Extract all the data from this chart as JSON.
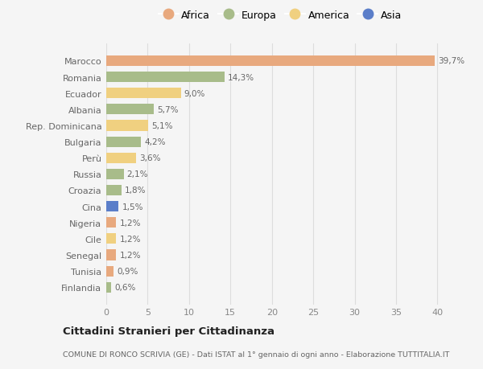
{
  "countries": [
    "Marocco",
    "Romania",
    "Ecuador",
    "Albania",
    "Rep. Dominicana",
    "Bulgaria",
    "Perù",
    "Russia",
    "Croazia",
    "Cina",
    "Nigeria",
    "Cile",
    "Senegal",
    "Tunisia",
    "Finlandia"
  ],
  "values": [
    39.7,
    14.3,
    9.0,
    5.7,
    5.1,
    4.2,
    3.6,
    2.1,
    1.8,
    1.5,
    1.2,
    1.2,
    1.2,
    0.9,
    0.6
  ],
  "labels": [
    "39,7%",
    "14,3%",
    "9,0%",
    "5,7%",
    "5,1%",
    "4,2%",
    "3,6%",
    "2,1%",
    "1,8%",
    "1,5%",
    "1,2%",
    "1,2%",
    "1,2%",
    "0,9%",
    "0,6%"
  ],
  "continents": [
    "Africa",
    "Europa",
    "America",
    "Europa",
    "America",
    "Europa",
    "America",
    "Europa",
    "Europa",
    "Asia",
    "Africa",
    "America",
    "Africa",
    "Africa",
    "Europa"
  ],
  "colors": {
    "Africa": "#E8A97E",
    "Europa": "#A8BC8A",
    "America": "#F0D080",
    "Asia": "#5B7EC9"
  },
  "legend_order": [
    "Africa",
    "Europa",
    "America",
    "Asia"
  ],
  "title": "Cittadini Stranieri per Cittadinanza",
  "subtitle": "COMUNE DI RONCO SCRIVIA (GE) - Dati ISTAT al 1° gennaio di ogni anno - Elaborazione TUTTITALIA.IT",
  "xlim": [
    0,
    42
  ],
  "xticks": [
    0,
    5,
    10,
    15,
    20,
    25,
    30,
    35,
    40
  ],
  "background_color": "#F5F5F5",
  "grid_color": "#DDDDDD",
  "bar_height": 0.65
}
